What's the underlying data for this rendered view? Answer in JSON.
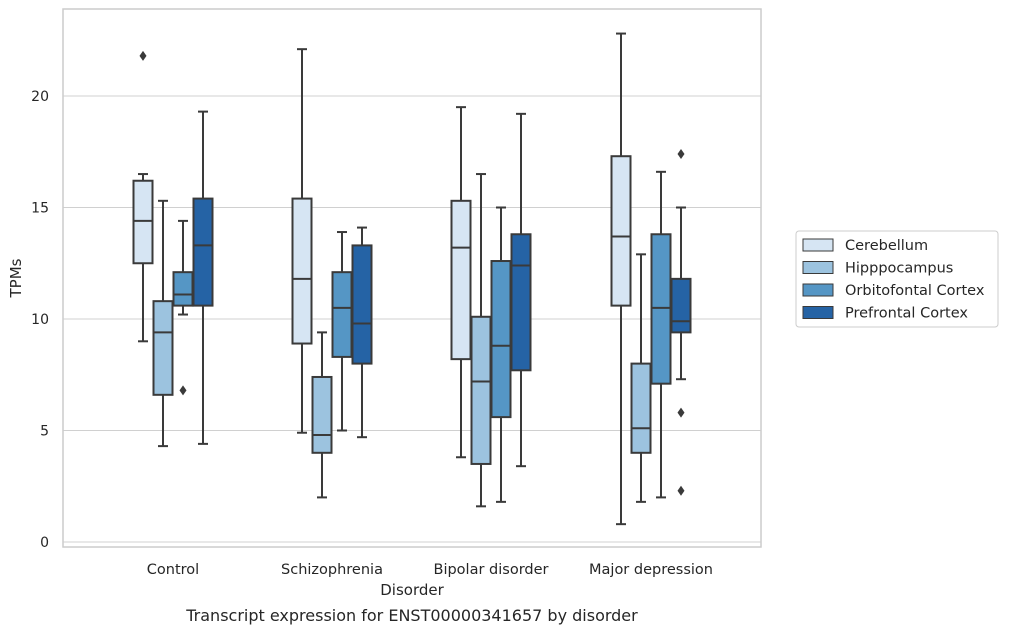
{
  "chart_data": {
    "type": "box",
    "title": "Transcript expression for ENST00000341657 by disorder",
    "xlabel": "Disorder",
    "ylabel": "TPMs",
    "ylim": [
      -0.2,
      23.8
    ],
    "yticks": [
      0,
      5,
      10,
      15,
      20
    ],
    "grid": "horizontal",
    "legend_position": "right",
    "categories": [
      "Control",
      "Schizophrenia",
      "Bipolar disorder",
      "Major depression"
    ],
    "series": [
      {
        "name": "Cerebellum",
        "color": "#d6e5f3",
        "boxes": [
          {
            "whisker_low": 9.0,
            "q1": 12.5,
            "median": 14.4,
            "q3": 16.2,
            "whisker_high": 16.5,
            "outliers": [
              21.8
            ]
          },
          {
            "whisker_low": 4.9,
            "q1": 8.9,
            "median": 11.8,
            "q3": 15.4,
            "whisker_high": 22.1,
            "outliers": []
          },
          {
            "whisker_low": 3.8,
            "q1": 8.2,
            "median": 13.2,
            "q3": 15.3,
            "whisker_high": 19.5,
            "outliers": []
          },
          {
            "whisker_low": 0.8,
            "q1": 10.6,
            "median": 13.7,
            "q3": 17.3,
            "whisker_high": 22.8,
            "outliers": []
          }
        ]
      },
      {
        "name": "Hipppocampus",
        "color": "#9cc3df",
        "boxes": [
          {
            "whisker_low": 4.3,
            "q1": 6.6,
            "median": 9.4,
            "q3": 10.8,
            "whisker_high": 15.3,
            "outliers": []
          },
          {
            "whisker_low": 2.0,
            "q1": 4.0,
            "median": 4.8,
            "q3": 7.4,
            "whisker_high": 9.4,
            "outliers": []
          },
          {
            "whisker_low": 1.6,
            "q1": 3.5,
            "median": 7.2,
            "q3": 10.1,
            "whisker_high": 16.5,
            "outliers": []
          },
          {
            "whisker_low": 1.8,
            "q1": 4.0,
            "median": 5.1,
            "q3": 8.0,
            "whisker_high": 12.9,
            "outliers": []
          }
        ]
      },
      {
        "name": "Orbitofontal Cortex",
        "color": "#5596c5",
        "boxes": [
          {
            "whisker_low": 10.2,
            "q1": 10.6,
            "median": 11.1,
            "q3": 12.1,
            "whisker_high": 14.4,
            "outliers": [
              6.8
            ]
          },
          {
            "whisker_low": 5.0,
            "q1": 8.3,
            "median": 10.5,
            "q3": 12.1,
            "whisker_high": 13.9,
            "outliers": []
          },
          {
            "whisker_low": 1.8,
            "q1": 5.6,
            "median": 8.8,
            "q3": 12.6,
            "whisker_high": 15.0,
            "outliers": []
          },
          {
            "whisker_low": 2.0,
            "q1": 7.1,
            "median": 10.5,
            "q3": 13.8,
            "whisker_high": 16.6,
            "outliers": []
          }
        ]
      },
      {
        "name": "Prefrontal Cortex",
        "color": "#2563a5",
        "boxes": [
          {
            "whisker_low": 4.4,
            "q1": 10.6,
            "median": 13.3,
            "q3": 15.4,
            "whisker_high": 19.3,
            "outliers": []
          },
          {
            "whisker_low": 4.7,
            "q1": 8.0,
            "median": 9.8,
            "q3": 13.3,
            "whisker_high": 14.1,
            "outliers": []
          },
          {
            "whisker_low": 3.4,
            "q1": 7.7,
            "median": 12.4,
            "q3": 13.8,
            "whisker_high": 19.2,
            "outliers": []
          },
          {
            "whisker_low": 7.3,
            "q1": 9.4,
            "median": 9.9,
            "q3": 11.8,
            "whisker_high": 15.0,
            "outliers": [
              17.4,
              5.8,
              2.3
            ]
          }
        ]
      }
    ]
  }
}
